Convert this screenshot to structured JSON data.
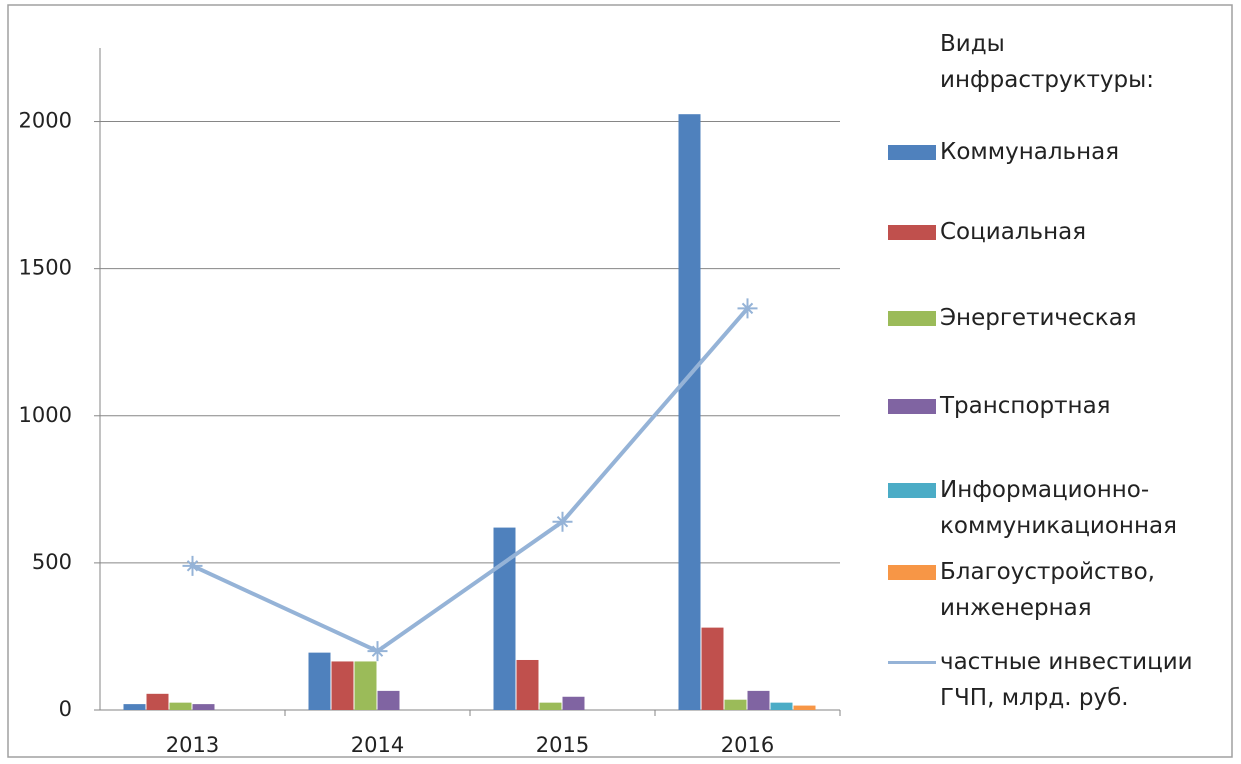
{
  "chart_data": {
    "type": "bar",
    "legend_title": "Виды\nинфраструктуры:",
    "categories": [
      "2013",
      "2014",
      "2015",
      "2016"
    ],
    "series": [
      {
        "name": "Коммунальная",
        "color": "#4f81bd",
        "values": [
          20,
          195,
          620,
          2025
        ]
      },
      {
        "name": "Социальная",
        "color": "#c0504d",
        "values": [
          55,
          165,
          170,
          280
        ]
      },
      {
        "name": "Энергетическая",
        "color": "#9bbb59",
        "values": [
          25,
          165,
          25,
          35
        ]
      },
      {
        "name": "Транспортная",
        "color": "#8064a2",
        "values": [
          20,
          65,
          45,
          65
        ]
      },
      {
        "name": "Информационно-\nкоммуникационная",
        "color": "#4bacc6",
        "values": [
          0,
          0,
          0,
          25
        ]
      },
      {
        "name": "Благоустройство,\nинженерная",
        "color": "#f79646",
        "values": [
          0,
          0,
          0,
          15
        ]
      },
      {
        "name": "частные инвестиции\nГЧП, млрд. руб.",
        "color": "#95b3d7",
        "type": "line",
        "values": [
          490,
          200,
          640,
          1365
        ]
      }
    ],
    "ylim": [
      0,
      2250
    ],
    "yticks": [
      0,
      500,
      1000,
      1500,
      2000
    ],
    "grid": true,
    "legend": "right"
  }
}
